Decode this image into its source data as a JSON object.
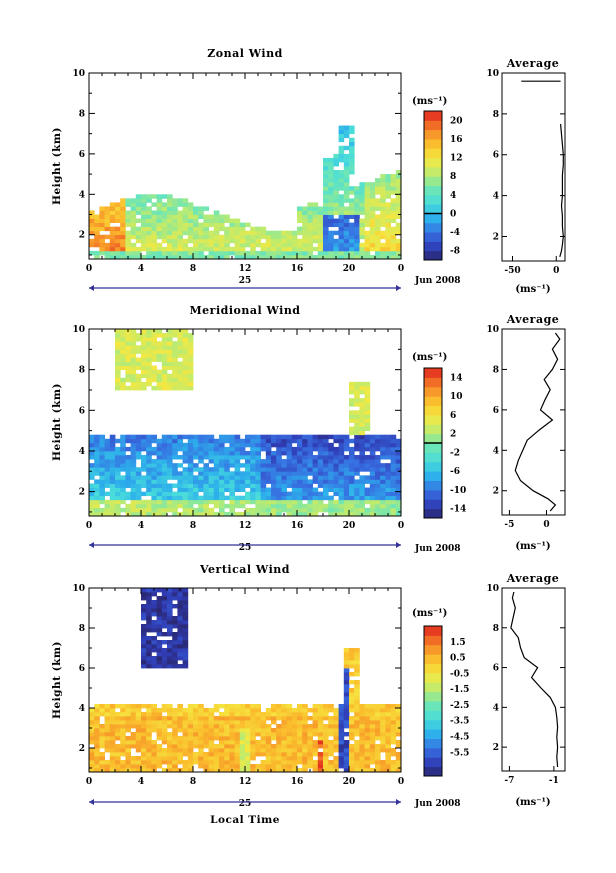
{
  "chart_data": [
    {
      "type": "heatmap",
      "title": "Zonal Wind",
      "ylabel": "Height (km)",
      "x_ticks": [
        "0",
        "4",
        "8",
        "12",
        "16",
        "20",
        "0"
      ],
      "y_ticks": [
        "2",
        "4",
        "6",
        "8",
        "10"
      ],
      "xlim": [
        0,
        24
      ],
      "ylim": [
        0.8,
        10
      ],
      "date_day": "25",
      "date_suffix": "Jun 2008",
      "colorbar": {
        "label": "(ms⁻¹)",
        "range": [
          -10,
          22
        ],
        "ticks": [
          "20",
          "16",
          "12",
          "8",
          "4",
          "0",
          "-4",
          "-8"
        ],
        "tick_values": [
          20,
          16,
          12,
          8,
          4,
          0,
          -4,
          -8
        ],
        "zero_line": 0
      },
      "average": {
        "title": "Average",
        "x_ticks": [
          "-50",
          "0"
        ],
        "x_tick_values": [
          -50,
          0
        ],
        "xlim": [
          -62,
          10
        ],
        "ylim": [
          0.8,
          10
        ],
        "y_ticks": [
          "2",
          "4",
          "6",
          "8",
          "10"
        ],
        "xlabel": "(ms⁻¹)",
        "profile_height": [
          1.0,
          1.3,
          1.6,
          2.0,
          2.5,
          3.0,
          3.5,
          4.0,
          4.5,
          5.0,
          5.5,
          6.0,
          6.5,
          7.0,
          7.5,
          8.0,
          8.5,
          9.0,
          9.3,
          9.5,
          9.8
        ],
        "profile_value": [
          4,
          6,
          7,
          8,
          7,
          7,
          6,
          7,
          7,
          7,
          8,
          8,
          7,
          6,
          5,
          null,
          null,
          null,
          null,
          null,
          null
        ]
      }
    },
    {
      "type": "heatmap",
      "title": "Meridional Wind",
      "ylabel": "Height (km)",
      "x_ticks": [
        "0",
        "4",
        "8",
        "12",
        "16",
        "20",
        "0"
      ],
      "y_ticks": [
        "2",
        "4",
        "6",
        "8",
        "10"
      ],
      "xlim": [
        0,
        24
      ],
      "ylim": [
        0.8,
        10
      ],
      "date_day": "25",
      "date_suffix": "Jun 2008",
      "colorbar": {
        "label": "(ms⁻¹)",
        "range": [
          -16,
          16
        ],
        "ticks": [
          "14",
          "10",
          "6",
          "2",
          "-2",
          "-6",
          "-10",
          "-14"
        ],
        "tick_values": [
          14,
          10,
          6,
          2,
          -2,
          -6,
          -10,
          -14
        ],
        "zero_line": 0
      },
      "average": {
        "title": "Average",
        "x_ticks": [
          "-5",
          "0"
        ],
        "x_tick_values": [
          -5,
          0
        ],
        "xlim": [
          -6,
          2.5
        ],
        "ylim": [
          0.8,
          10
        ],
        "y_ticks": [
          "2",
          "4",
          "6",
          "8",
          "10"
        ],
        "xlabel": "(ms⁻¹)",
        "profile_height": [
          1.0,
          1.3,
          1.6,
          2.0,
          2.5,
          3.0,
          3.5,
          4.0,
          4.5,
          5.0,
          5.5,
          6.0,
          6.5,
          7.0,
          7.5,
          8.0,
          8.5,
          9.0,
          9.5,
          9.8
        ],
        "profile_value": [
          0.5,
          1.2,
          0.2,
          -1.8,
          -3.5,
          -4.2,
          -3.8,
          -3.2,
          -2.6,
          -1.0,
          0.8,
          -0.8,
          -0.2,
          0.5,
          -0.3,
          0.8,
          1.5,
          0.8,
          1.8,
          1.2
        ]
      }
    },
    {
      "type": "heatmap",
      "title": "Vertical Wind",
      "ylabel": "Height (km)",
      "xlabel": "Local Time",
      "x_ticks": [
        "0",
        "4",
        "8",
        "12",
        "16",
        "20",
        "0"
      ],
      "y_ticks": [
        "2",
        "4",
        "6",
        "8",
        "10"
      ],
      "xlim": [
        0,
        24
      ],
      "ylim": [
        0.8,
        10
      ],
      "date_day": "25",
      "date_suffix": "Jun 2008",
      "colorbar": {
        "label": "(ms⁻¹)",
        "range": [
          -7,
          2.5
        ],
        "ticks": [
          "1.5",
          "0.5",
          "-0.5",
          "-1.5",
          "-2.5",
          "-3.5",
          "-4.5",
          "-5.5"
        ],
        "tick_values": [
          1.5,
          0.5,
          -0.5,
          -1.5,
          -2.5,
          -3.5,
          -4.5,
          -5.5
        ],
        "zero_line": null
      },
      "average": {
        "title": "Average",
        "x_ticks": [
          "-7",
          "-1"
        ],
        "x_tick_values": [
          -7,
          -1
        ],
        "xlim": [
          -8,
          0.5
        ],
        "ylim": [
          0.8,
          10
        ],
        "y_ticks": [
          "2",
          "4",
          "6",
          "8",
          "10"
        ],
        "xlabel": "(ms⁻¹)",
        "profile_height": [
          1.0,
          1.5,
          2.0,
          2.5,
          3.0,
          3.5,
          4.0,
          4.5,
          5.0,
          5.5,
          6.0,
          6.5,
          7.0,
          7.5,
          8.0,
          8.5,
          9.0,
          9.5,
          9.8
        ],
        "profile_value": [
          -0.5,
          -0.6,
          -0.5,
          -0.6,
          -0.5,
          -0.6,
          -0.8,
          -1.5,
          -2.8,
          -4.0,
          -3.2,
          -5.0,
          -5.5,
          -5.8,
          -6.8,
          -6.5,
          -6.2,
          -6.6,
          -6.4
        ]
      }
    }
  ]
}
